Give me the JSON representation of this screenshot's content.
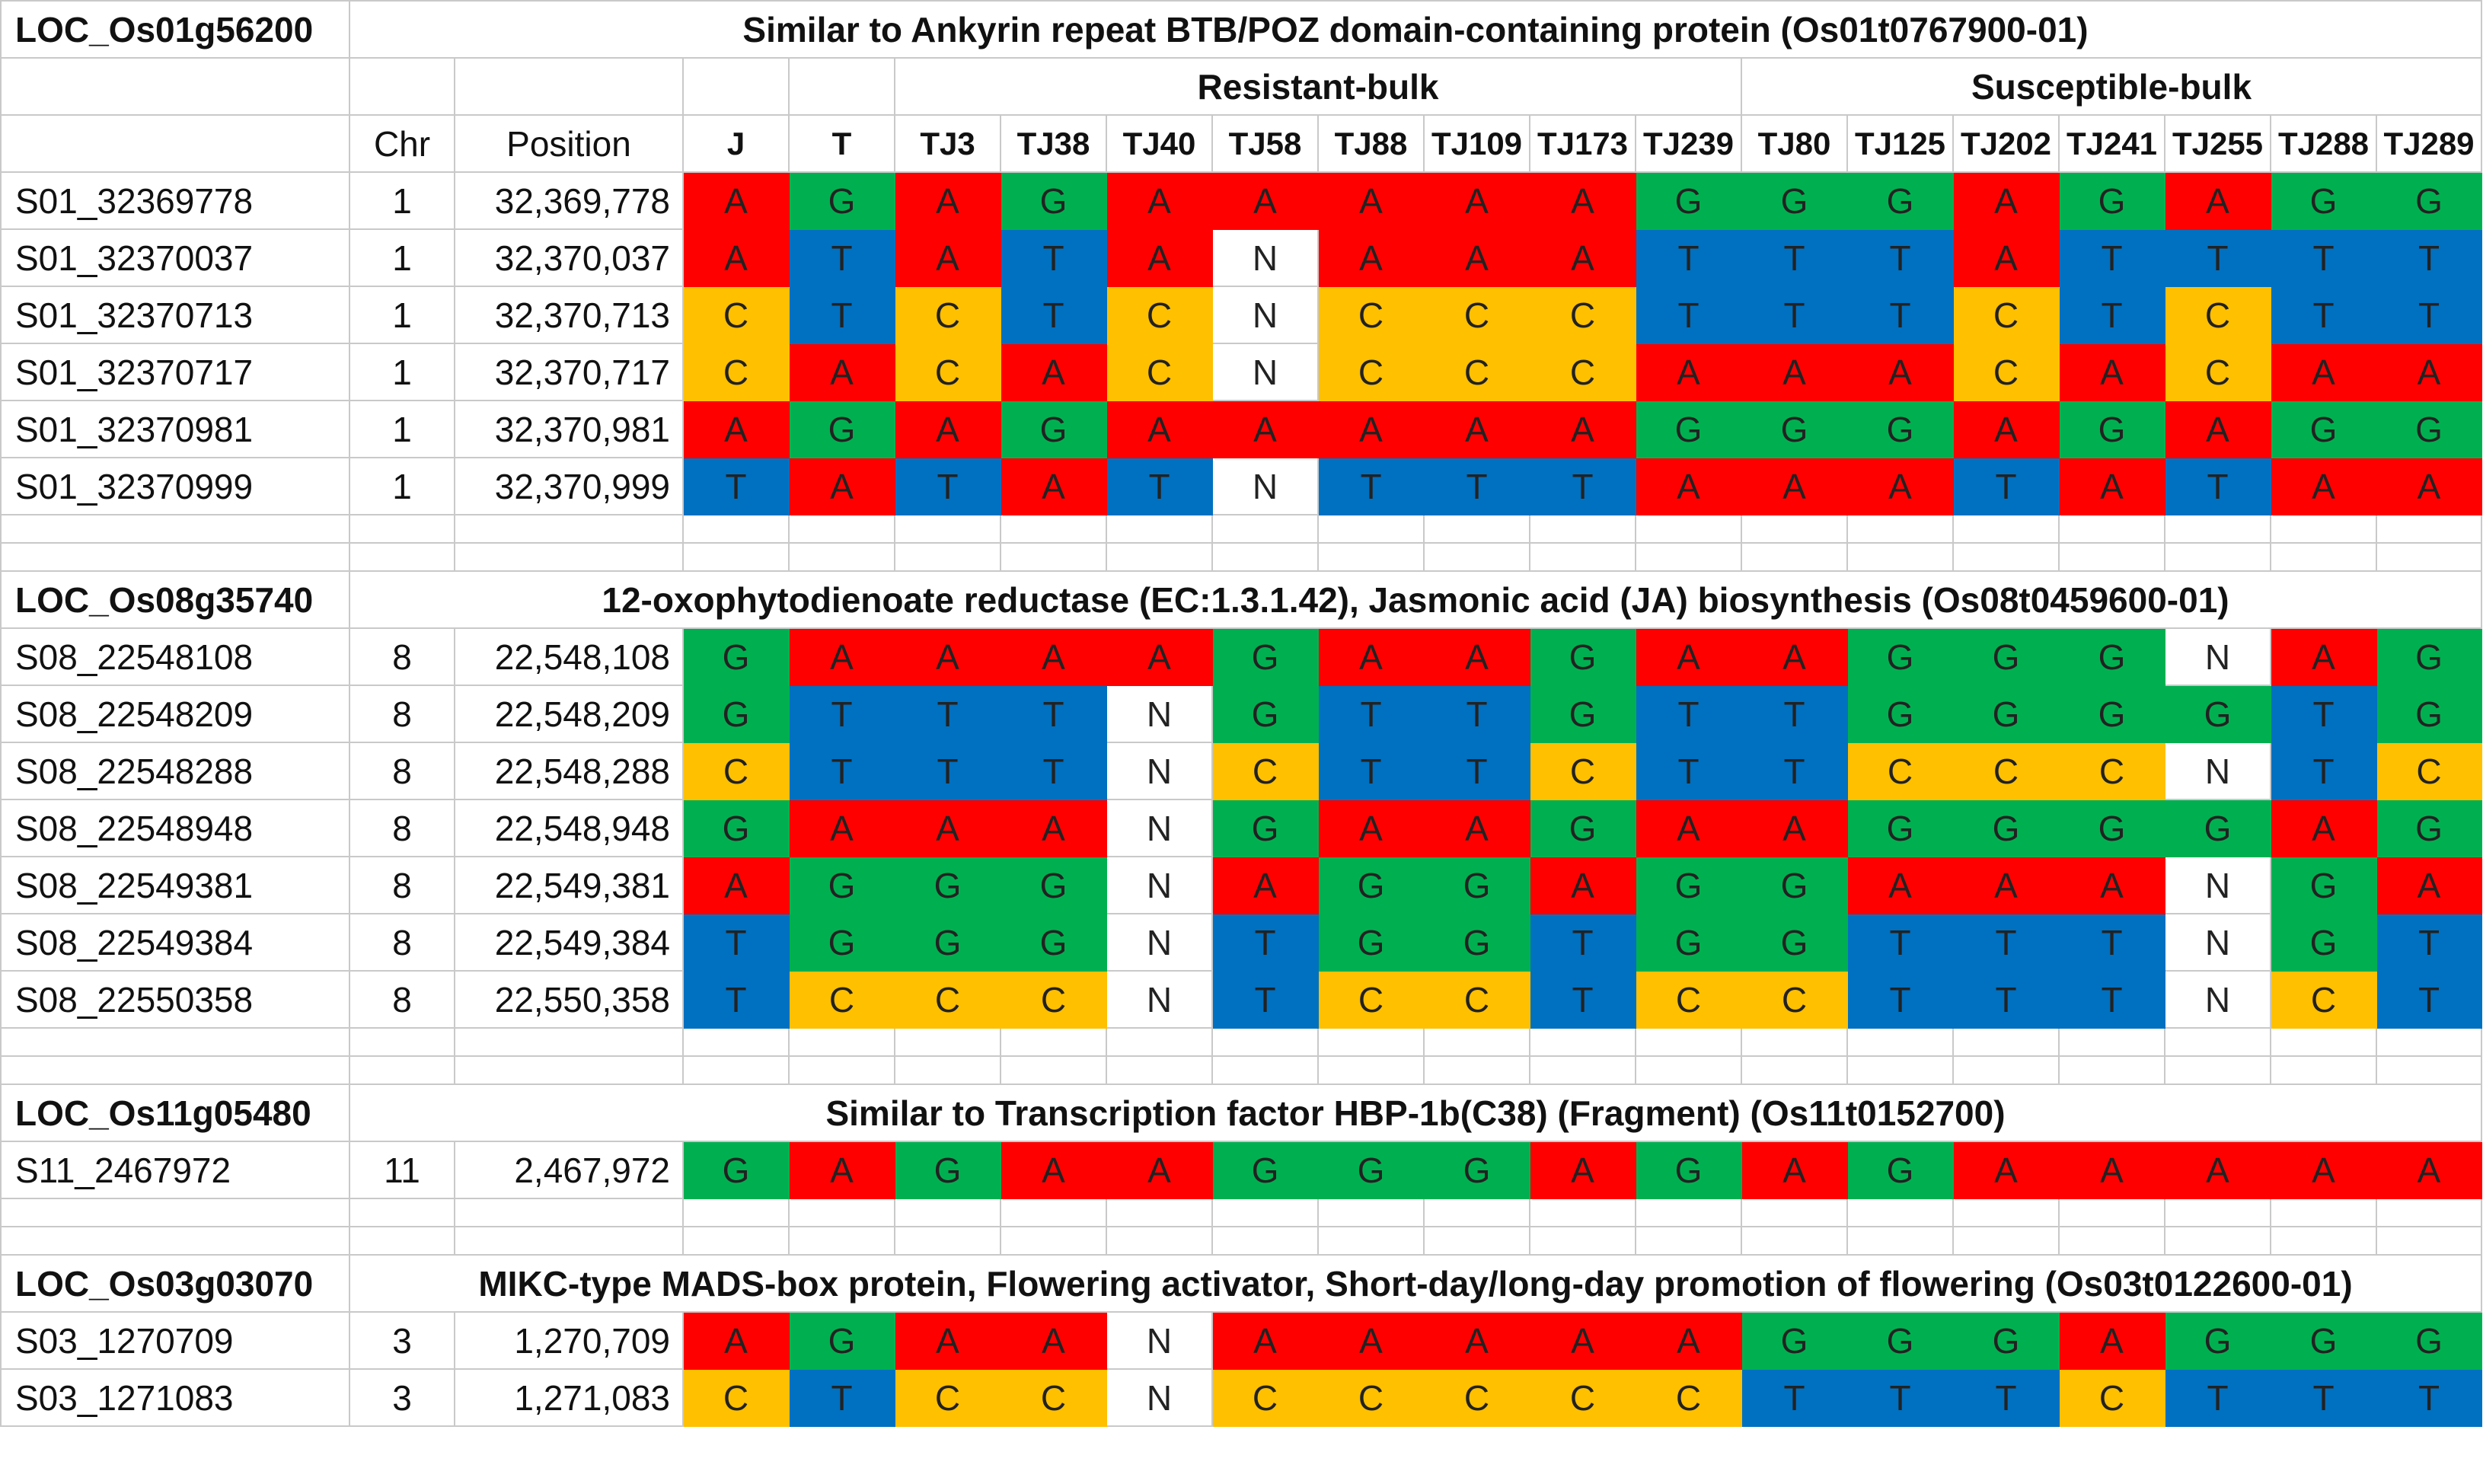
{
  "colors": {
    "A": "#ff0000",
    "G": "#00b050",
    "T": "#0070c0",
    "C": "#ffc000",
    "N": "#ffffff"
  },
  "header": {
    "group_resistant": "Resistant-bulk",
    "group_susceptible": "Susceptible-bulk",
    "chr_label": "Chr",
    "position_label": "Position",
    "samples": [
      "J",
      "T",
      "TJ3",
      "TJ38",
      "TJ40",
      "TJ58",
      "TJ88",
      "TJ109",
      "TJ173",
      "TJ239",
      "TJ80",
      "TJ125",
      "TJ202",
      "TJ241",
      "TJ255",
      "TJ288",
      "TJ289"
    ]
  },
  "genes": [
    {
      "locus": "LOC_Os01g56200",
      "description": "Similar to Ankyrin repeat BTB/POZ domain-containing protein (Os01t0767900-01)",
      "snps": [
        {
          "id": "S01_32369778",
          "chr": "1",
          "position": "32,369,778",
          "calls": [
            "A",
            "G",
            "A",
            "G",
            "A",
            "A",
            "A",
            "A",
            "A",
            "G",
            "G",
            "G",
            "A",
            "G",
            "A",
            "G",
            "G"
          ]
        },
        {
          "id": "S01_32370037",
          "chr": "1",
          "position": "32,370,037",
          "calls": [
            "A",
            "T",
            "A",
            "T",
            "A",
            "N",
            "A",
            "A",
            "A",
            "T",
            "T",
            "T",
            "A",
            "T",
            "T",
            "T",
            "T"
          ]
        },
        {
          "id": "S01_32370713",
          "chr": "1",
          "position": "32,370,713",
          "calls": [
            "C",
            "T",
            "C",
            "T",
            "C",
            "N",
            "C",
            "C",
            "C",
            "T",
            "T",
            "T",
            "C",
            "T",
            "C",
            "T",
            "T"
          ]
        },
        {
          "id": "S01_32370717",
          "chr": "1",
          "position": "32,370,717",
          "calls": [
            "C",
            "A",
            "C",
            "A",
            "C",
            "N",
            "C",
            "C",
            "C",
            "A",
            "A",
            "A",
            "C",
            "A",
            "C",
            "A",
            "A"
          ]
        },
        {
          "id": "S01_32370981",
          "chr": "1",
          "position": "32,370,981",
          "calls": [
            "A",
            "G",
            "A",
            "G",
            "A",
            "A",
            "A",
            "A",
            "A",
            "G",
            "G",
            "G",
            "A",
            "G",
            "A",
            "G",
            "G"
          ]
        },
        {
          "id": "S01_32370999",
          "chr": "1",
          "position": "32,370,999",
          "calls": [
            "T",
            "A",
            "T",
            "A",
            "T",
            "N",
            "T",
            "T",
            "T",
            "A",
            "A",
            "A",
            "T",
            "A",
            "T",
            "A",
            "A"
          ]
        }
      ]
    },
    {
      "locus": "LOC_Os08g35740",
      "description": "12-oxophytodienoate reductase (EC:1.3.1.42), Jasmonic acid (JA) biosynthesis (Os08t0459600-01)",
      "snps": [
        {
          "id": "S08_22548108",
          "chr": "8",
          "position": "22,548,108",
          "calls": [
            "G",
            "A",
            "A",
            "A",
            "A",
            "G",
            "A",
            "A",
            "G",
            "A",
            "A",
            "G",
            "G",
            "G",
            "N",
            "A",
            "G"
          ]
        },
        {
          "id": "S08_22548209",
          "chr": "8",
          "position": "22,548,209",
          "calls": [
            "G",
            "T",
            "T",
            "T",
            "N",
            "G",
            "T",
            "T",
            "G",
            "T",
            "T",
            "G",
            "G",
            "G",
            "G",
            "T",
            "G"
          ]
        },
        {
          "id": "S08_22548288",
          "chr": "8",
          "position": "22,548,288",
          "calls": [
            "C",
            "T",
            "T",
            "T",
            "N",
            "C",
            "T",
            "T",
            "C",
            "T",
            "T",
            "C",
            "C",
            "C",
            "N",
            "T",
            "C"
          ]
        },
        {
          "id": "S08_22548948",
          "chr": "8",
          "position": "22,548,948",
          "calls": [
            "G",
            "A",
            "A",
            "A",
            "N",
            "G",
            "A",
            "A",
            "G",
            "A",
            "A",
            "G",
            "G",
            "G",
            "G",
            "A",
            "G"
          ]
        },
        {
          "id": "S08_22549381",
          "chr": "8",
          "position": "22,549,381",
          "calls": [
            "A",
            "G",
            "G",
            "G",
            "N",
            "A",
            "G",
            "G",
            "A",
            "G",
            "G",
            "A",
            "A",
            "A",
            "N",
            "G",
            "A"
          ]
        },
        {
          "id": "S08_22549384",
          "chr": "8",
          "position": "22,549,384",
          "calls": [
            "T",
            "G",
            "G",
            "G",
            "N",
            "T",
            "G",
            "G",
            "T",
            "G",
            "G",
            "T",
            "T",
            "T",
            "N",
            "G",
            "T"
          ]
        },
        {
          "id": "S08_22550358",
          "chr": "8",
          "position": "22,550,358",
          "calls": [
            "T",
            "C",
            "C",
            "C",
            "N",
            "T",
            "C",
            "C",
            "T",
            "C",
            "C",
            "T",
            "T",
            "T",
            "N",
            "C",
            "T"
          ]
        }
      ]
    },
    {
      "locus": "LOC_Os11g05480",
      "description": "Similar to Transcription factor HBP-1b(C38) (Fragment) (Os11t0152700)",
      "snps": [
        {
          "id": "S11_2467972",
          "chr": "11",
          "position": "2,467,972",
          "calls": [
            "G",
            "A",
            "G",
            "A",
            "A",
            "G",
            "G",
            "G",
            "A",
            "G",
            "A",
            "G",
            "A",
            "A",
            "A",
            "A",
            "A"
          ]
        }
      ]
    },
    {
      "locus": "LOC_Os03g03070",
      "description": "MIKC-type MADS-box protein, Flowering activator, Short-day/long-day promotion of flowering (Os03t0122600-01)",
      "snps": [
        {
          "id": "S03_1270709",
          "chr": "3",
          "position": "1,270,709",
          "calls": [
            "A",
            "G",
            "A",
            "A",
            "N",
            "A",
            "A",
            "A",
            "A",
            "A",
            "G",
            "G",
            "G",
            "A",
            "G",
            "G",
            "G"
          ]
        },
        {
          "id": "S03_1271083",
          "chr": "3",
          "position": "1,271,083",
          "calls": [
            "C",
            "T",
            "C",
            "C",
            "N",
            "C",
            "C",
            "C",
            "C",
            "C",
            "T",
            "T",
            "T",
            "C",
            "T",
            "T",
            "T"
          ]
        }
      ]
    }
  ]
}
